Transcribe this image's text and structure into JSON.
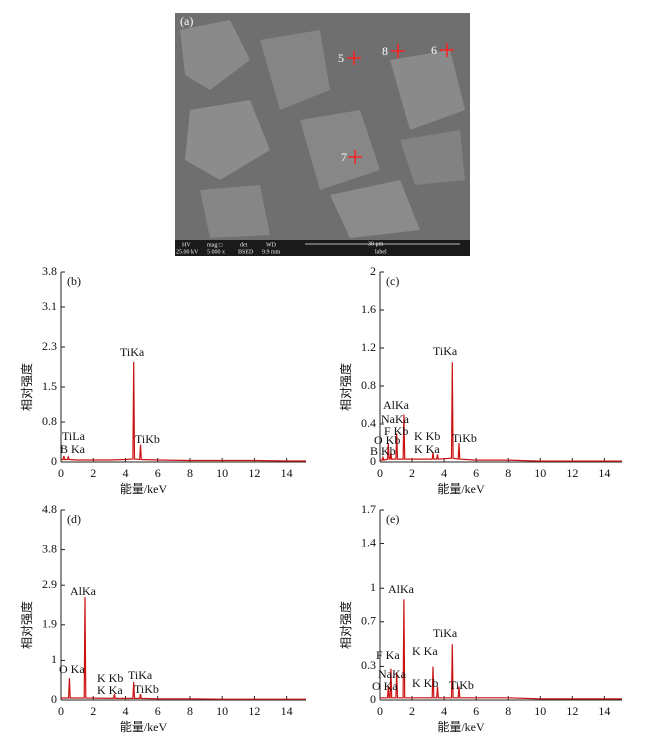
{
  "image_panel": {
    "label": "(a)",
    "points": [
      "5",
      "8",
      "6",
      "7"
    ],
    "info": [
      "HV",
      "mag □",
      "det",
      "WD",
      "30 μm",
      "25.00 kV",
      "5 000 x",
      "BSED",
      "9.9 mm",
      "label"
    ]
  },
  "chart_data": [
    {
      "type": "line",
      "panel_label": "(b)",
      "ylabel": "相对强度",
      "xlabel": "能量/keV",
      "x": [
        0,
        0.13,
        0.18,
        0.23,
        0.4,
        0.45,
        0.5,
        1,
        2,
        3,
        4,
        4.46,
        4.51,
        4.56,
        4.88,
        4.93,
        4.98,
        6,
        8,
        10,
        12,
        14,
        15.2
      ],
      "series": [
        {
          "color": "#cc1111",
          "values": [
            0.05,
            0.05,
            0.12,
            0.05,
            0.05,
            0.1,
            0.05,
            0.04,
            0.04,
            0.04,
            0.05,
            0.06,
            2.0,
            0.06,
            0.05,
            0.35,
            0.05,
            0.04,
            0.03,
            0.03,
            0.03,
            0.02,
            0.02
          ]
        }
      ],
      "xlim": [
        0,
        15.2
      ],
      "ylim": [
        0,
        3.8
      ],
      "xticks": [
        0,
        2,
        4,
        6,
        8,
        10,
        12,
        14
      ],
      "yticks": [
        0,
        0.8,
        1.5,
        2.3,
        3.1,
        3.8
      ],
      "annotations": [
        "TiKa",
        "TiLa",
        "B Ka",
        "TiKb"
      ]
    },
    {
      "type": "line",
      "panel_label": "(c)",
      "ylabel": "相对强度",
      "xlabel": "能量/keV",
      "x": [
        0,
        0.13,
        0.18,
        0.23,
        0.47,
        0.52,
        0.57,
        0.63,
        0.68,
        0.73,
        0.99,
        1.04,
        1.09,
        1.44,
        1.49,
        1.54,
        3.26,
        3.31,
        3.36,
        3.54,
        3.59,
        3.64,
        4.46,
        4.51,
        4.56,
        4.88,
        4.93,
        4.98,
        6,
        8,
        10,
        12,
        14,
        15.1
      ],
      "series": [
        {
          "color": "#cc1111",
          "values": [
            0.02,
            0.02,
            0.05,
            0.02,
            0.03,
            0.2,
            0.03,
            0.03,
            0.1,
            0.03,
            0.03,
            0.3,
            0.03,
            0.03,
            0.5,
            0.03,
            0.03,
            0.1,
            0.03,
            0.03,
            0.08,
            0.03,
            0.04,
            1.05,
            0.04,
            0.03,
            0.2,
            0.03,
            0.02,
            0.02,
            0.01,
            0.01,
            0.01,
            0.01
          ]
        }
      ],
      "xlim": [
        0,
        15.1
      ],
      "ylim": [
        0,
        2.0
      ],
      "xticks": [
        0,
        2,
        4,
        6,
        8,
        10,
        12,
        14
      ],
      "yticks": [
        0,
        0.4,
        0.8,
        1.2,
        1.6,
        2.0
      ],
      "annotations": [
        "AlKa",
        "NaKa",
        "F Kb",
        "O Kb",
        "B Kb",
        "K Kb",
        "K Ka",
        "TiKa",
        "TiKb"
      ]
    },
    {
      "type": "line",
      "panel_label": "(d)",
      "ylabel": "相对强度",
      "xlabel": "能量/keV",
      "x": [
        0,
        0.47,
        0.52,
        0.57,
        1.44,
        1.49,
        1.54,
        3.26,
        3.31,
        3.36,
        4.46,
        4.51,
        4.56,
        4.88,
        4.93,
        4.98,
        6,
        8,
        10,
        12,
        14,
        15.2
      ],
      "series": [
        {
          "color": "#cc1111",
          "values": [
            0.05,
            0.05,
            0.55,
            0.05,
            0.05,
            2.6,
            0.05,
            0.04,
            0.15,
            0.04,
            0.04,
            0.45,
            0.04,
            0.04,
            0.15,
            0.04,
            0.03,
            0.03,
            0.02,
            0.02,
            0.02,
            0.02
          ]
        }
      ],
      "xlim": [
        0,
        15.2
      ],
      "ylim": [
        0,
        4.8
      ],
      "xticks": [
        0,
        2,
        4,
        6,
        8,
        10,
        12,
        14
      ],
      "yticks": [
        0,
        1.0,
        1.9,
        2.9,
        3.8,
        4.8
      ],
      "annotations": [
        "AlKa",
        "O Ka",
        "K Kb",
        "K Ka",
        "TiKa",
        "TiKb"
      ]
    },
    {
      "type": "line",
      "panel_label": "(e)",
      "ylabel": "相对强度",
      "xlabel": "能量/keV",
      "x": [
        0,
        0.47,
        0.52,
        0.57,
        0.63,
        0.68,
        0.73,
        0.99,
        1.04,
        1.09,
        1.44,
        1.49,
        1.54,
        3.26,
        3.31,
        3.36,
        3.54,
        3.59,
        3.64,
        4.46,
        4.51,
        4.56,
        4.88,
        4.93,
        4.98,
        6,
        8,
        10,
        12,
        14,
        15.1
      ],
      "series": [
        {
          "color": "#cc1111",
          "values": [
            0.02,
            0.02,
            0.12,
            0.02,
            0.02,
            0.28,
            0.02,
            0.02,
            0.25,
            0.02,
            0.02,
            0.9,
            0.02,
            0.02,
            0.3,
            0.02,
            0.02,
            0.12,
            0.02,
            0.02,
            0.5,
            0.02,
            0.02,
            0.12,
            0.02,
            0.02,
            0.02,
            0.01,
            0.01,
            0.01,
            0.01
          ]
        }
      ],
      "xlim": [
        0,
        15.1
      ],
      "ylim": [
        0,
        1.7
      ],
      "xticks": [
        0,
        2,
        4,
        6,
        8,
        10,
        12,
        14
      ],
      "yticks": [
        0,
        0.3,
        0.7,
        1.0,
        1.4,
        1.7
      ],
      "annotations": [
        "AlKa",
        "F Ka",
        "NaKa",
        "O Ka",
        "K Ka",
        "K Kb",
        "TiKa",
        "TiKb"
      ]
    }
  ]
}
